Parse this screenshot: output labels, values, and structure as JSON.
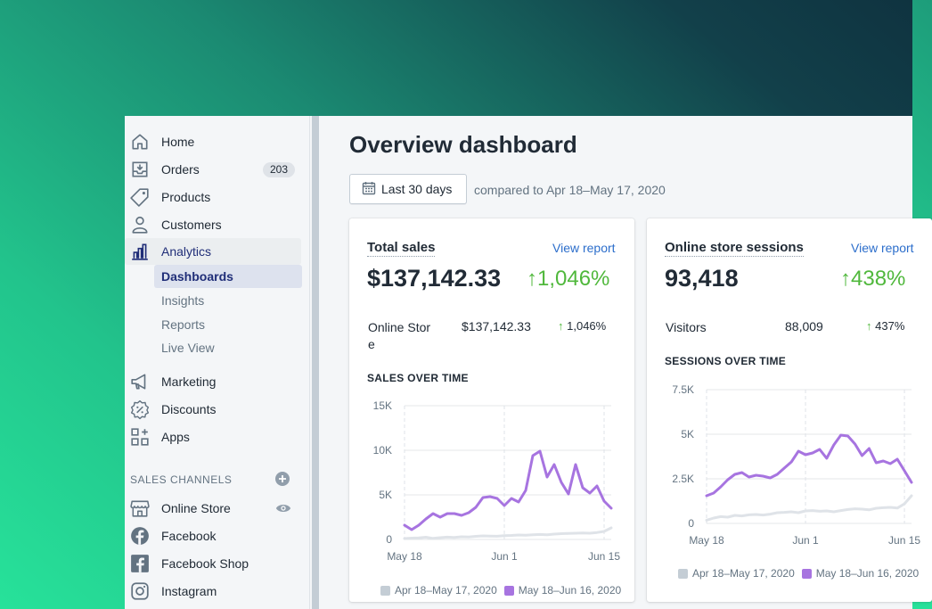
{
  "colors": {
    "accent": "#202e78",
    "positive": "#50b83c",
    "link": "#2c6ecb",
    "current_series": "#a774e0",
    "previous_series": "#dfe3e8"
  },
  "sidebar": {
    "items": [
      {
        "label": "Home",
        "icon": "home-icon"
      },
      {
        "label": "Orders",
        "icon": "orders-icon",
        "badge": "203"
      },
      {
        "label": "Products",
        "icon": "tag-icon"
      },
      {
        "label": "Customers",
        "icon": "person-icon"
      },
      {
        "label": "Analytics",
        "icon": "bar-chart-icon"
      }
    ],
    "analytics_sub": [
      "Dashboards",
      "Insights",
      "Reports",
      "Live View"
    ],
    "items2": [
      {
        "label": "Marketing",
        "icon": "megaphone-icon"
      },
      {
        "label": "Discounts",
        "icon": "discount-icon"
      },
      {
        "label": "Apps",
        "icon": "apps-icon"
      }
    ],
    "sales_channels_heading": "SALES CHANNELS",
    "channels": [
      {
        "label": "Online Store",
        "icon": "store-icon"
      },
      {
        "label": "Facebook",
        "icon": "facebook-icon"
      },
      {
        "label": "Facebook Shop",
        "icon": "facebook-shop-icon"
      },
      {
        "label": "Instagram",
        "icon": "instagram-icon"
      }
    ]
  },
  "main": {
    "title": "Overview dashboard",
    "date_button": "Last 30 days",
    "compare_text": "compared to Apr 18–May 17, 2020",
    "sales_card": {
      "title": "Total sales",
      "link": "View report",
      "value": "$137,142.33",
      "pct": "1,046%",
      "row_label": "Online Store",
      "row_value": "$137,142.33",
      "row_pct": "1,046%",
      "chart_heading": "SALES OVER TIME",
      "legend_prev": "Apr 18–May 17, 2020",
      "legend_curr": "May 18–Jun 16, 2020"
    },
    "sessions_card": {
      "title": "Online store sessions",
      "link": "View report",
      "value": "93,418",
      "pct": "438%",
      "row_label": "Visitors",
      "row_value": "88,009",
      "row_pct": "437%",
      "chart_heading": "SESSIONS OVER TIME",
      "legend_prev": "Apr 18–May 17, 2020",
      "legend_curr": "May 18–Jun 16, 2020"
    }
  },
  "chart_data": [
    {
      "type": "line",
      "title": "SALES OVER TIME",
      "x_ticks": [
        "May 18",
        "Jun 1",
        "Jun 15"
      ],
      "y_ticks": [
        "0",
        "5K",
        "10K",
        "15K"
      ],
      "ylim": [
        0,
        15000
      ],
      "grid": true,
      "legend_position": "bottom",
      "series": [
        {
          "name": "May 18–Jun 16, 2020",
          "color": "#a774e0",
          "values": [
            1600,
            1100,
            1600,
            2300,
            2900,
            2500,
            2900,
            2900,
            2700,
            3000,
            3600,
            4700,
            4800,
            4600,
            3800,
            4600,
            4200,
            5500,
            9400,
            9900,
            7000,
            8400,
            6400,
            5100,
            8400,
            5800,
            5200,
            6000,
            4300,
            3500
          ]
        },
        {
          "name": "Apr 18–May 17, 2020",
          "color": "#dfe3e8",
          "values": [
            100,
            150,
            180,
            250,
            120,
            200,
            260,
            220,
            300,
            280,
            350,
            400,
            380,
            360,
            420,
            450,
            500,
            480,
            520,
            560,
            530,
            600,
            650,
            680,
            700,
            720,
            700,
            780,
            900,
            1300
          ]
        }
      ]
    },
    {
      "type": "line",
      "title": "SESSIONS OVER TIME",
      "x_ticks": [
        "May 18",
        "Jun 1",
        "Jun 15"
      ],
      "y_ticks": [
        "0",
        "2.5K",
        "5K",
        "7.5K"
      ],
      "ylim": [
        0,
        7500
      ],
      "grid": true,
      "legend_position": "bottom",
      "series": [
        {
          "name": "May 18–Jun 16, 2020",
          "color": "#a774e0",
          "values": [
            1550,
            1700,
            2050,
            2450,
            2750,
            2850,
            2600,
            2700,
            2650,
            2550,
            2750,
            3100,
            3450,
            4050,
            3850,
            3950,
            4150,
            3650,
            4400,
            4950,
            4900,
            4450,
            3800,
            4200,
            3400,
            3500,
            3350,
            3600,
            2950,
            2300
          ]
        },
        {
          "name": "Apr 18–May 17, 2020",
          "color": "#dfe3e8",
          "values": [
            180,
            300,
            380,
            350,
            450,
            420,
            480,
            500,
            470,
            520,
            600,
            620,
            650,
            600,
            700,
            720,
            680,
            700,
            650,
            720,
            780,
            820,
            800,
            760,
            850,
            880,
            900,
            860,
            1100,
            1550
          ]
        }
      ]
    }
  ]
}
